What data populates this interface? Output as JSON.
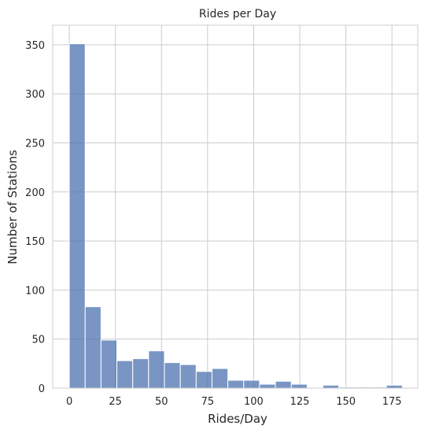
{
  "chart_data": {
    "type": "bar",
    "title": "Rides per Day",
    "xlabel": "Rides/Day",
    "ylabel": "Number of Stations",
    "bin_edges": [
      0,
      8.6,
      17.2,
      25.8,
      34.4,
      43.0,
      51.6,
      60.2,
      68.8,
      77.4,
      86.0,
      94.6,
      103.2,
      111.8,
      120.4,
      129.0,
      137.6,
      146.2,
      154.8,
      163.4,
      172.0,
      180.6
    ],
    "values": [
      351,
      83,
      49,
      28,
      30,
      38,
      26,
      24,
      17,
      20,
      8,
      8,
      4,
      7,
      4,
      0,
      3,
      1,
      1,
      1,
      3
    ],
    "xlim": [
      -9,
      189
    ],
    "ylim": [
      0,
      370
    ],
    "xticks": [
      "0",
      "25",
      "50",
      "75",
      "100",
      "125",
      "150",
      "175"
    ],
    "yticks": [
      "0",
      "50",
      "100",
      "150",
      "200",
      "250",
      "300",
      "350"
    ],
    "grid": true,
    "bar_color": "#4c72b0"
  }
}
